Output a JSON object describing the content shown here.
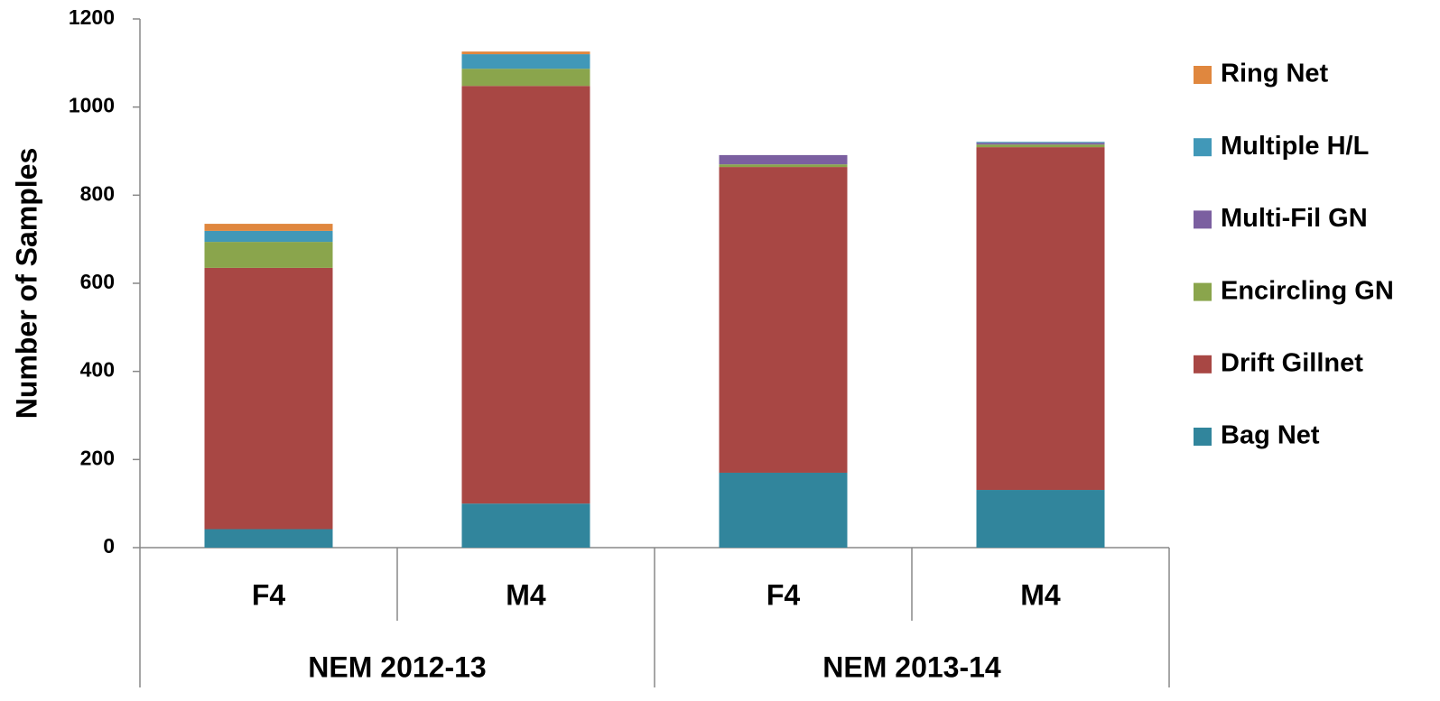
{
  "chart_data": {
    "type": "stacked_bar",
    "y_label": "Number of Samples",
    "groups": [
      {
        "name": "NEM 2012-13",
        "categories": [
          "F4",
          "M4"
        ]
      },
      {
        "name": "NEM 2013-14",
        "categories": [
          "F4",
          "M4"
        ]
      }
    ],
    "series": [
      {
        "name": "Bag Net",
        "color": "#31859c",
        "values": [
          42,
          100,
          170,
          131
        ]
      },
      {
        "name": "Drift Gillnet",
        "color": "#a84744",
        "values": [
          593,
          948,
          694,
          778
        ]
      },
      {
        "name": "Encircling GN",
        "color": "#8aa54c",
        "values": [
          59,
          39,
          6,
          6
        ]
      },
      {
        "name": "Multi-Fil GN",
        "color": "#7b5fa0",
        "values": [
          0,
          0,
          21,
          4
        ]
      },
      {
        "name": "Multiple H/L",
        "color": "#4198b8",
        "values": [
          25,
          33,
          0,
          2
        ]
      },
      {
        "name": "Ring Net",
        "color": "#e0873e",
        "values": [
          16,
          6,
          0,
          0
        ]
      }
    ],
    "ylim": [
      0,
      1200
    ],
    "yticks": [
      0,
      200,
      400,
      600,
      800,
      1000,
      1200
    ],
    "legend": "right"
  }
}
